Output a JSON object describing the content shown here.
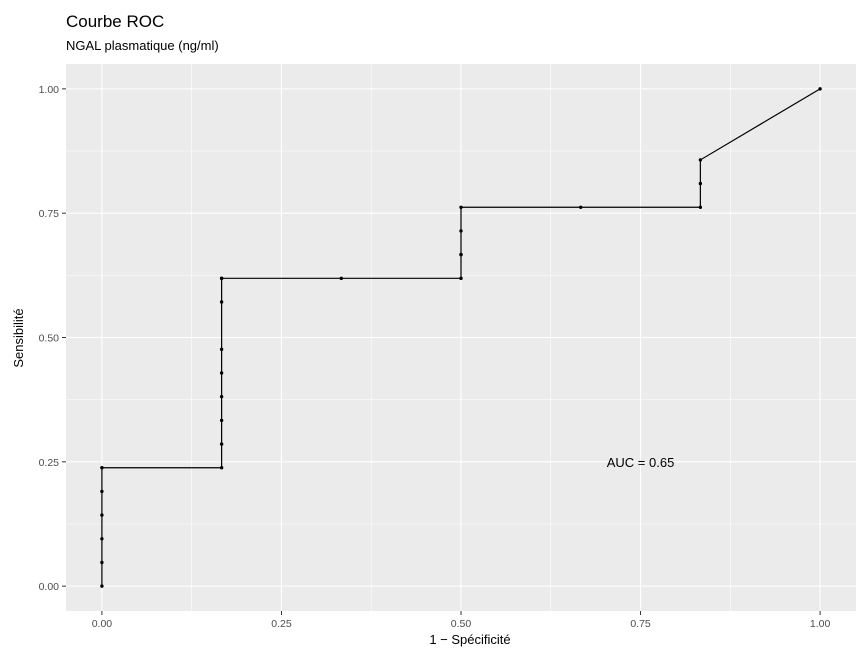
{
  "chart_data": {
    "type": "line",
    "title": "Courbe ROC",
    "subtitle": "NGAL plasmatique (ng/ml)",
    "xlabel": "1 − Spécificité",
    "ylabel": "Sensibilité",
    "xlim": [
      -0.05,
      1.05
    ],
    "ylim": [
      -0.05,
      1.05
    ],
    "x_ticks": [
      0,
      0.25,
      0.5,
      0.75,
      1
    ],
    "x_tick_labels": [
      "0.00",
      "0.25",
      "0.50",
      "0.75",
      "1.00"
    ],
    "y_ticks": [
      0,
      0.25,
      0.5,
      0.75,
      1
    ],
    "y_tick_labels": [
      "0.00",
      "0.25",
      "0.50",
      "0.75",
      "1.00"
    ],
    "grid": true,
    "panel_background": "#ebebeb",
    "grid_color": "#ffffff",
    "line_color": "#000000",
    "annotation": {
      "text": "AUC = 0.65",
      "x": 0.75,
      "y": 0.25
    },
    "series": [
      {
        "x": [
          0,
          0,
          0,
          0,
          0,
          0,
          0.1667,
          0.1667,
          0.1667,
          0.1667,
          0.1667,
          0.1667,
          0.1667,
          0.1667,
          0.1667,
          0.3333,
          0.5,
          0.5,
          0.5,
          0.5,
          0.5,
          0.6667,
          0.8333,
          0.8333,
          0.8333,
          1.0
        ],
        "y": [
          0,
          0.0476,
          0.0952,
          0.1429,
          0.1905,
          0.2381,
          0.2381,
          0.2857,
          0.3333,
          0.381,
          0.4286,
          0.4762,
          0.5714,
          0.619,
          0.619,
          0.619,
          0.619,
          0.6667,
          0.6667,
          0.7143,
          0.7619,
          0.7619,
          0.7619,
          0.8095,
          0.8571,
          1.0
        ]
      }
    ]
  }
}
